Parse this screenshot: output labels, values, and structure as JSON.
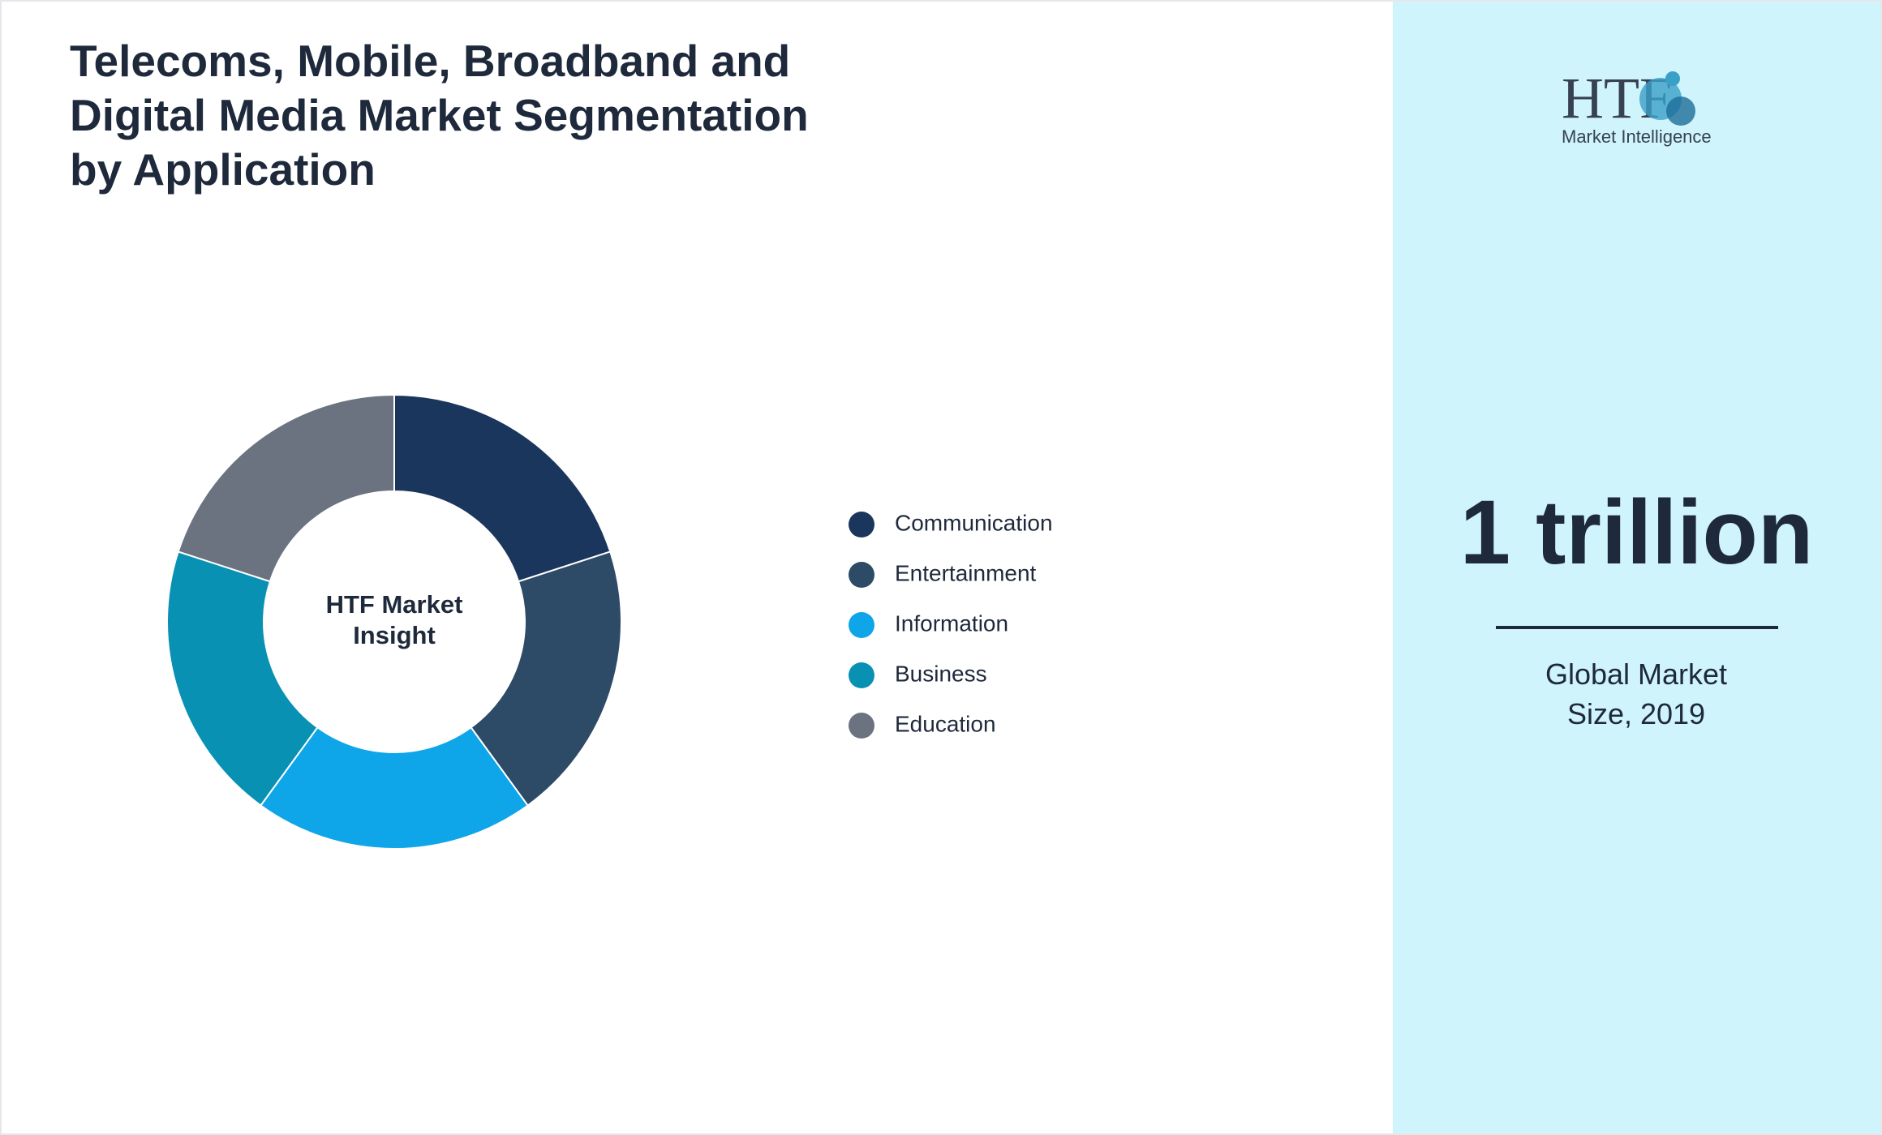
{
  "chart_data": {
    "type": "donut",
    "title": "Telecoms, Mobile, Broadband and Digital Media Market Segmentation by Application",
    "center_label": [
      "HTF Market",
      "Insight"
    ],
    "categories": [
      "Communication",
      "Entertainment",
      "Information",
      "Business",
      "Education"
    ],
    "values": [
      20,
      20,
      20,
      20,
      20
    ],
    "colors": [
      "#1b365d",
      "#2d4a66",
      "#0ea5e9",
      "#0891b2",
      "#6b7280"
    ]
  },
  "side_panel": {
    "logo_mark": "HTF",
    "logo_text": "Market Intelligence",
    "headline": "1 trillion",
    "caption": "Global Market Size, 2019"
  }
}
